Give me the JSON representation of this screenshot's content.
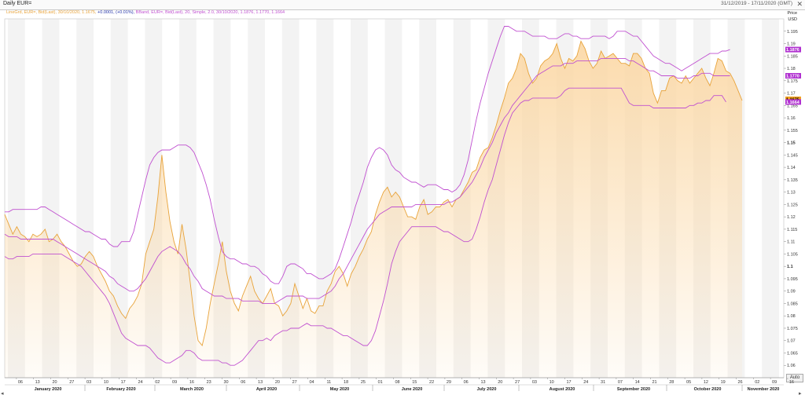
{
  "window": {
    "title": "Daily EUR=",
    "date_range": "31/12/2019 - 17/11/2020 (GMT)",
    "close_icon": "close-icon"
  },
  "legend": {
    "line": "LineGrd, EUR=, Bid(Last), 30/10/2020, 1.1675,",
    "line_change": "+0.0001, (+0.01%),",
    "bband": "BBand, EUR=, Bid(Last), 20, Simple, 2.0, 30/10/2020, 1.1876, 1.1770, 1.1664"
  },
  "price_axis": {
    "title": "Price",
    "unit": "USD",
    "auto_label": "Auto"
  },
  "colors": {
    "line": "#e8a33a",
    "fill": "#fbd9a8",
    "bband": "#c050d0",
    "badge_line": "#f0a020",
    "badge_band": "#b030d0"
  },
  "chart_data": {
    "type": "line",
    "title": "Daily EUR=",
    "ylabel": "Price USD",
    "ylim": [
      1.055,
      1.2
    ],
    "y_ticks": [
      "1.06",
      "1.065",
      "1.07",
      "1.075",
      "1.08",
      "1.085",
      "1.09",
      "1.095",
      "1.1",
      "1.105",
      "1.11",
      "1.115",
      "1.12",
      "1.125",
      "1.13",
      "1.135",
      "1.14",
      "1.145",
      "1.15",
      "1.155",
      "1.16",
      "1.165",
      "1.17",
      "1.175",
      "1.18",
      "1.185",
      "1.19",
      "1.195"
    ],
    "x_tick_labels": [
      "06",
      "13",
      "20",
      "27",
      "03",
      "10",
      "17",
      "24",
      "02",
      "09",
      "16",
      "23",
      "30",
      "06",
      "13",
      "20",
      "27",
      "04",
      "11",
      "18",
      "25",
      "01",
      "08",
      "15",
      "22",
      "29",
      "06",
      "13",
      "20",
      "27",
      "03",
      "10",
      "17",
      "24",
      "31",
      "07",
      "14",
      "21",
      "28",
      "05",
      "12",
      "19",
      "26",
      "02",
      "09",
      "16"
    ],
    "months": [
      "January 2020",
      "February 2020",
      "March 2020",
      "April 2020",
      "May 2020",
      "June 2020",
      "July 2020",
      "August 2020",
      "September 2020",
      "October 2020",
      "November 2020"
    ],
    "value_badges": [
      {
        "label": "1.1876",
        "value": 1.1876,
        "role": "band"
      },
      {
        "label": "1.1770",
        "value": 1.177,
        "role": "band"
      },
      {
        "label": "1.1675",
        "value": 1.1675,
        "role": "line"
      },
      {
        "label": "1.1664",
        "value": 1.1664,
        "role": "band"
      }
    ],
    "series": [
      {
        "name": "EUR=",
        "role": "line",
        "values": [
          1.121,
          1.117,
          1.113,
          1.116,
          1.113,
          1.112,
          1.11,
          1.113,
          1.112,
          1.113,
          1.115,
          1.11,
          1.111,
          1.113,
          1.11,
          1.108,
          1.105,
          1.102,
          1.1,
          1.101,
          1.104,
          1.106,
          1.104,
          1.1,
          1.097,
          1.094,
          1.09,
          1.088,
          1.084,
          1.081,
          1.079,
          1.083,
          1.085,
          1.088,
          1.093,
          1.105,
          1.11,
          1.115,
          1.128,
          1.145,
          1.13,
          1.118,
          1.11,
          1.105,
          1.117,
          1.107,
          1.094,
          1.08,
          1.07,
          1.068,
          1.075,
          1.085,
          1.093,
          1.101,
          1.11,
          1.098,
          1.09,
          1.085,
          1.082,
          1.088,
          1.092,
          1.096,
          1.09,
          1.087,
          1.085,
          1.088,
          1.091,
          1.085,
          1.084,
          1.08,
          1.082,
          1.085,
          1.093,
          1.088,
          1.083,
          1.087,
          1.082,
          1.081,
          1.084,
          1.084,
          1.09,
          1.093,
          1.098,
          1.1,
          1.097,
          1.092,
          1.097,
          1.1,
          1.104,
          1.107,
          1.111,
          1.114,
          1.121,
          1.126,
          1.13,
          1.132,
          1.128,
          1.13,
          1.128,
          1.124,
          1.12,
          1.12,
          1.119,
          1.124,
          1.127,
          1.121,
          1.122,
          1.124,
          1.124,
          1.126,
          1.127,
          1.124,
          1.127,
          1.128,
          1.131,
          1.134,
          1.138,
          1.139,
          1.144,
          1.147,
          1.148,
          1.152,
          1.157,
          1.163,
          1.168,
          1.174,
          1.176,
          1.18,
          1.186,
          1.184,
          1.178,
          1.174,
          1.176,
          1.181,
          1.183,
          1.184,
          1.186,
          1.19,
          1.184,
          1.18,
          1.184,
          1.183,
          1.185,
          1.191,
          1.188,
          1.183,
          1.18,
          1.182,
          1.187,
          1.184,
          1.185,
          1.186,
          1.184,
          1.182,
          1.182,
          1.181,
          1.186,
          1.186,
          1.184,
          1.18,
          1.178,
          1.17,
          1.166,
          1.171,
          1.171,
          1.176,
          1.177,
          1.175,
          1.174,
          1.177,
          1.174,
          1.176,
          1.178,
          1.18,
          1.176,
          1.173,
          1.178,
          1.184,
          1.183,
          1.179,
          1.178,
          1.175,
          1.171,
          1.167
        ]
      },
      {
        "name": "Upper band",
        "role": "band",
        "values": [
          1.122,
          1.122,
          1.123,
          1.123,
          1.123,
          1.123,
          1.123,
          1.123,
          1.123,
          1.124,
          1.124,
          1.123,
          1.122,
          1.121,
          1.12,
          1.119,
          1.118,
          1.117,
          1.116,
          1.115,
          1.114,
          1.114,
          1.113,
          1.112,
          1.111,
          1.111,
          1.109,
          1.108,
          1.108,
          1.11,
          1.11,
          1.11,
          1.114,
          1.121,
          1.128,
          1.135,
          1.141,
          1.144,
          1.146,
          1.147,
          1.147,
          1.147,
          1.148,
          1.149,
          1.149,
          1.149,
          1.148,
          1.146,
          1.142,
          1.138,
          1.133,
          1.127,
          1.119,
          1.112,
          1.106,
          1.104,
          1.103,
          1.103,
          1.102,
          1.101,
          1.101,
          1.1,
          1.1,
          1.099,
          1.097,
          1.096,
          1.094,
          1.093,
          1.093,
          1.096,
          1.1,
          1.101,
          1.101,
          1.1,
          1.099,
          1.097,
          1.097,
          1.096,
          1.095,
          1.095,
          1.096,
          1.097,
          1.099,
          1.103,
          1.108,
          1.113,
          1.118,
          1.124,
          1.129,
          1.134,
          1.14,
          1.144,
          1.147,
          1.148,
          1.147,
          1.145,
          1.141,
          1.139,
          1.138,
          1.136,
          1.135,
          1.134,
          1.134,
          1.133,
          1.132,
          1.133,
          1.133,
          1.133,
          1.132,
          1.131,
          1.131,
          1.13,
          1.131,
          1.133,
          1.137,
          1.143,
          1.151,
          1.159,
          1.166,
          1.172,
          1.178,
          1.183,
          1.188,
          1.193,
          1.197,
          1.197,
          1.196,
          1.195,
          1.195,
          1.195,
          1.194,
          1.193,
          1.193,
          1.193,
          1.193,
          1.192,
          1.192,
          1.192,
          1.193,
          1.194,
          1.194,
          1.193,
          1.193,
          1.192,
          1.192,
          1.192,
          1.193,
          1.193,
          1.193,
          1.193,
          1.192,
          1.193,
          1.195,
          1.195,
          1.195,
          1.194,
          1.193,
          1.193,
          1.191,
          1.189,
          1.187,
          1.185,
          1.184,
          1.183,
          1.182,
          1.182,
          1.181,
          1.18,
          1.179,
          1.18,
          1.181,
          1.182,
          1.183,
          1.184,
          1.185,
          1.186,
          1.186,
          1.186,
          1.187,
          1.187,
          1.1876
        ]
      },
      {
        "name": "Middle band",
        "role": "band",
        "values": [
          1.113,
          1.112,
          1.112,
          1.112,
          1.111,
          1.111,
          1.111,
          1.111,
          1.111,
          1.111,
          1.111,
          1.111,
          1.111,
          1.11,
          1.109,
          1.108,
          1.107,
          1.106,
          1.105,
          1.104,
          1.103,
          1.102,
          1.101,
          1.1,
          1.099,
          1.098,
          1.096,
          1.095,
          1.093,
          1.092,
          1.091,
          1.09,
          1.09,
          1.091,
          1.093,
          1.095,
          1.098,
          1.101,
          1.104,
          1.106,
          1.107,
          1.108,
          1.107,
          1.106,
          1.104,
          1.101,
          1.099,
          1.096,
          1.094,
          1.091,
          1.09,
          1.089,
          1.088,
          1.088,
          1.088,
          1.087,
          1.087,
          1.087,
          1.087,
          1.086,
          1.086,
          1.086,
          1.086,
          1.086,
          1.085,
          1.085,
          1.085,
          1.085,
          1.086,
          1.087,
          1.088,
          1.088,
          1.088,
          1.088,
          1.088,
          1.087,
          1.087,
          1.087,
          1.087,
          1.088,
          1.089,
          1.09,
          1.092,
          1.095,
          1.097,
          1.1,
          1.103,
          1.106,
          1.109,
          1.112,
          1.115,
          1.117,
          1.119,
          1.121,
          1.122,
          1.123,
          1.124,
          1.124,
          1.124,
          1.124,
          1.124,
          1.124,
          1.125,
          1.125,
          1.125,
          1.125,
          1.125,
          1.125,
          1.125,
          1.125,
          1.126,
          1.126,
          1.127,
          1.128,
          1.13,
          1.132,
          1.134,
          1.137,
          1.14,
          1.144,
          1.147,
          1.15,
          1.154,
          1.157,
          1.16,
          1.162,
          1.165,
          1.167,
          1.169,
          1.171,
          1.173,
          1.175,
          1.177,
          1.178,
          1.179,
          1.18,
          1.181,
          1.181,
          1.181,
          1.182,
          1.182,
          1.182,
          1.183,
          1.183,
          1.183,
          1.183,
          1.183,
          1.183,
          1.184,
          1.184,
          1.184,
          1.184,
          1.184,
          1.184,
          1.184,
          1.183,
          1.183,
          1.182,
          1.181,
          1.18,
          1.179,
          1.179,
          1.178,
          1.177,
          1.177,
          1.177,
          1.177,
          1.176,
          1.176,
          1.176,
          1.176,
          1.177,
          1.177,
          1.178,
          1.178,
          1.178,
          1.177,
          1.177,
          1.177,
          1.177,
          1.177
        ]
      },
      {
        "name": "Lower band",
        "role": "band",
        "values": [
          1.104,
          1.103,
          1.103,
          1.104,
          1.104,
          1.104,
          1.104,
          1.105,
          1.105,
          1.105,
          1.105,
          1.105,
          1.105,
          1.105,
          1.105,
          1.104,
          1.103,
          1.102,
          1.101,
          1.1,
          1.098,
          1.096,
          1.094,
          1.092,
          1.09,
          1.088,
          1.085,
          1.081,
          1.077,
          1.073,
          1.071,
          1.07,
          1.069,
          1.068,
          1.068,
          1.068,
          1.067,
          1.065,
          1.063,
          1.062,
          1.061,
          1.061,
          1.062,
          1.063,
          1.064,
          1.066,
          1.066,
          1.065,
          1.063,
          1.062,
          1.062,
          1.062,
          1.062,
          1.062,
          1.061,
          1.061,
          1.06,
          1.06,
          1.061,
          1.062,
          1.064,
          1.066,
          1.068,
          1.07,
          1.07,
          1.071,
          1.07,
          1.072,
          1.073,
          1.074,
          1.074,
          1.075,
          1.075,
          1.075,
          1.076,
          1.077,
          1.076,
          1.076,
          1.076,
          1.076,
          1.075,
          1.075,
          1.074,
          1.073,
          1.072,
          1.072,
          1.071,
          1.07,
          1.069,
          1.068,
          1.068,
          1.07,
          1.074,
          1.08,
          1.086,
          1.093,
          1.101,
          1.106,
          1.11,
          1.112,
          1.114,
          1.116,
          1.116,
          1.116,
          1.116,
          1.116,
          1.116,
          1.116,
          1.115,
          1.114,
          1.114,
          1.113,
          1.112,
          1.111,
          1.11,
          1.11,
          1.111,
          1.115,
          1.12,
          1.126,
          1.131,
          1.135,
          1.141,
          1.147,
          1.153,
          1.158,
          1.162,
          1.164,
          1.166,
          1.167,
          1.167,
          1.168,
          1.168,
          1.168,
          1.168,
          1.168,
          1.168,
          1.168,
          1.169,
          1.171,
          1.172,
          1.172,
          1.172,
          1.172,
          1.172,
          1.172,
          1.172,
          1.172,
          1.172,
          1.172,
          1.172,
          1.172,
          1.172,
          1.172,
          1.169,
          1.166,
          1.165,
          1.165,
          1.165,
          1.165,
          1.165,
          1.164,
          1.164,
          1.164,
          1.164,
          1.164,
          1.164,
          1.164,
          1.164,
          1.164,
          1.165,
          1.165,
          1.166,
          1.166,
          1.167,
          1.167,
          1.169,
          1.169,
          1.169,
          1.1664
        ]
      }
    ]
  }
}
